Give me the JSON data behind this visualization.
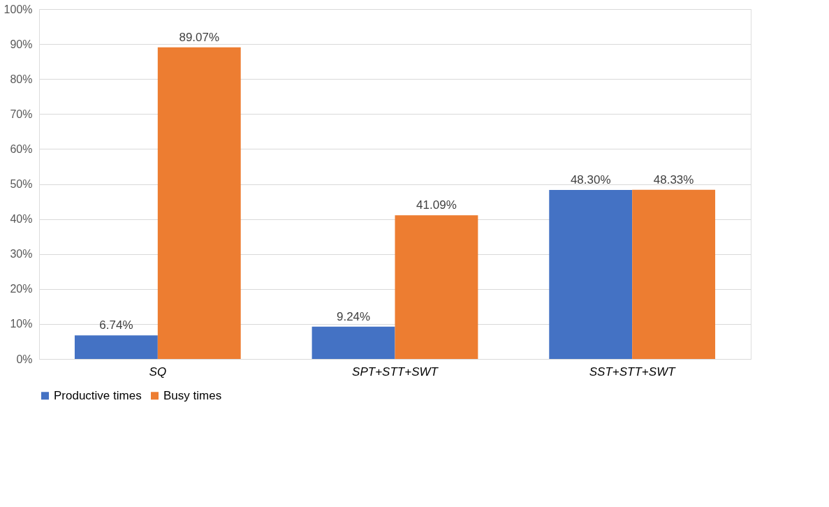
{
  "chart_data": {
    "type": "bar",
    "categories": [
      "SQ",
      "SPT+STT+SWT",
      "SST+STT+SWT"
    ],
    "series": [
      {
        "name": "Productive times",
        "color": "#4472c4",
        "values": [
          6.74,
          9.24,
          48.3
        ],
        "value_labels": [
          "6.74%",
          "9.24%",
          "48.30%"
        ]
      },
      {
        "name": "Busy times",
        "color": "#ed7d31",
        "values": [
          89.07,
          41.09,
          48.33
        ],
        "value_labels": [
          "89.07%",
          "41.09%",
          "48.33%"
        ]
      }
    ],
    "ylim": [
      0,
      100
    ],
    "yticks": [
      {
        "value": 0,
        "label": "0%"
      },
      {
        "value": 10,
        "label": "10%"
      },
      {
        "value": 20,
        "label": "20%"
      },
      {
        "value": 30,
        "label": "30%"
      },
      {
        "value": 40,
        "label": "40%"
      },
      {
        "value": 50,
        "label": "50%"
      },
      {
        "value": 60,
        "label": "60%"
      },
      {
        "value": 70,
        "label": "70%"
      },
      {
        "value": 80,
        "label": "80%"
      },
      {
        "value": 90,
        "label": "90%"
      },
      {
        "value": 100,
        "label": "100%"
      }
    ],
    "grid": "y",
    "legend": "bottom"
  }
}
